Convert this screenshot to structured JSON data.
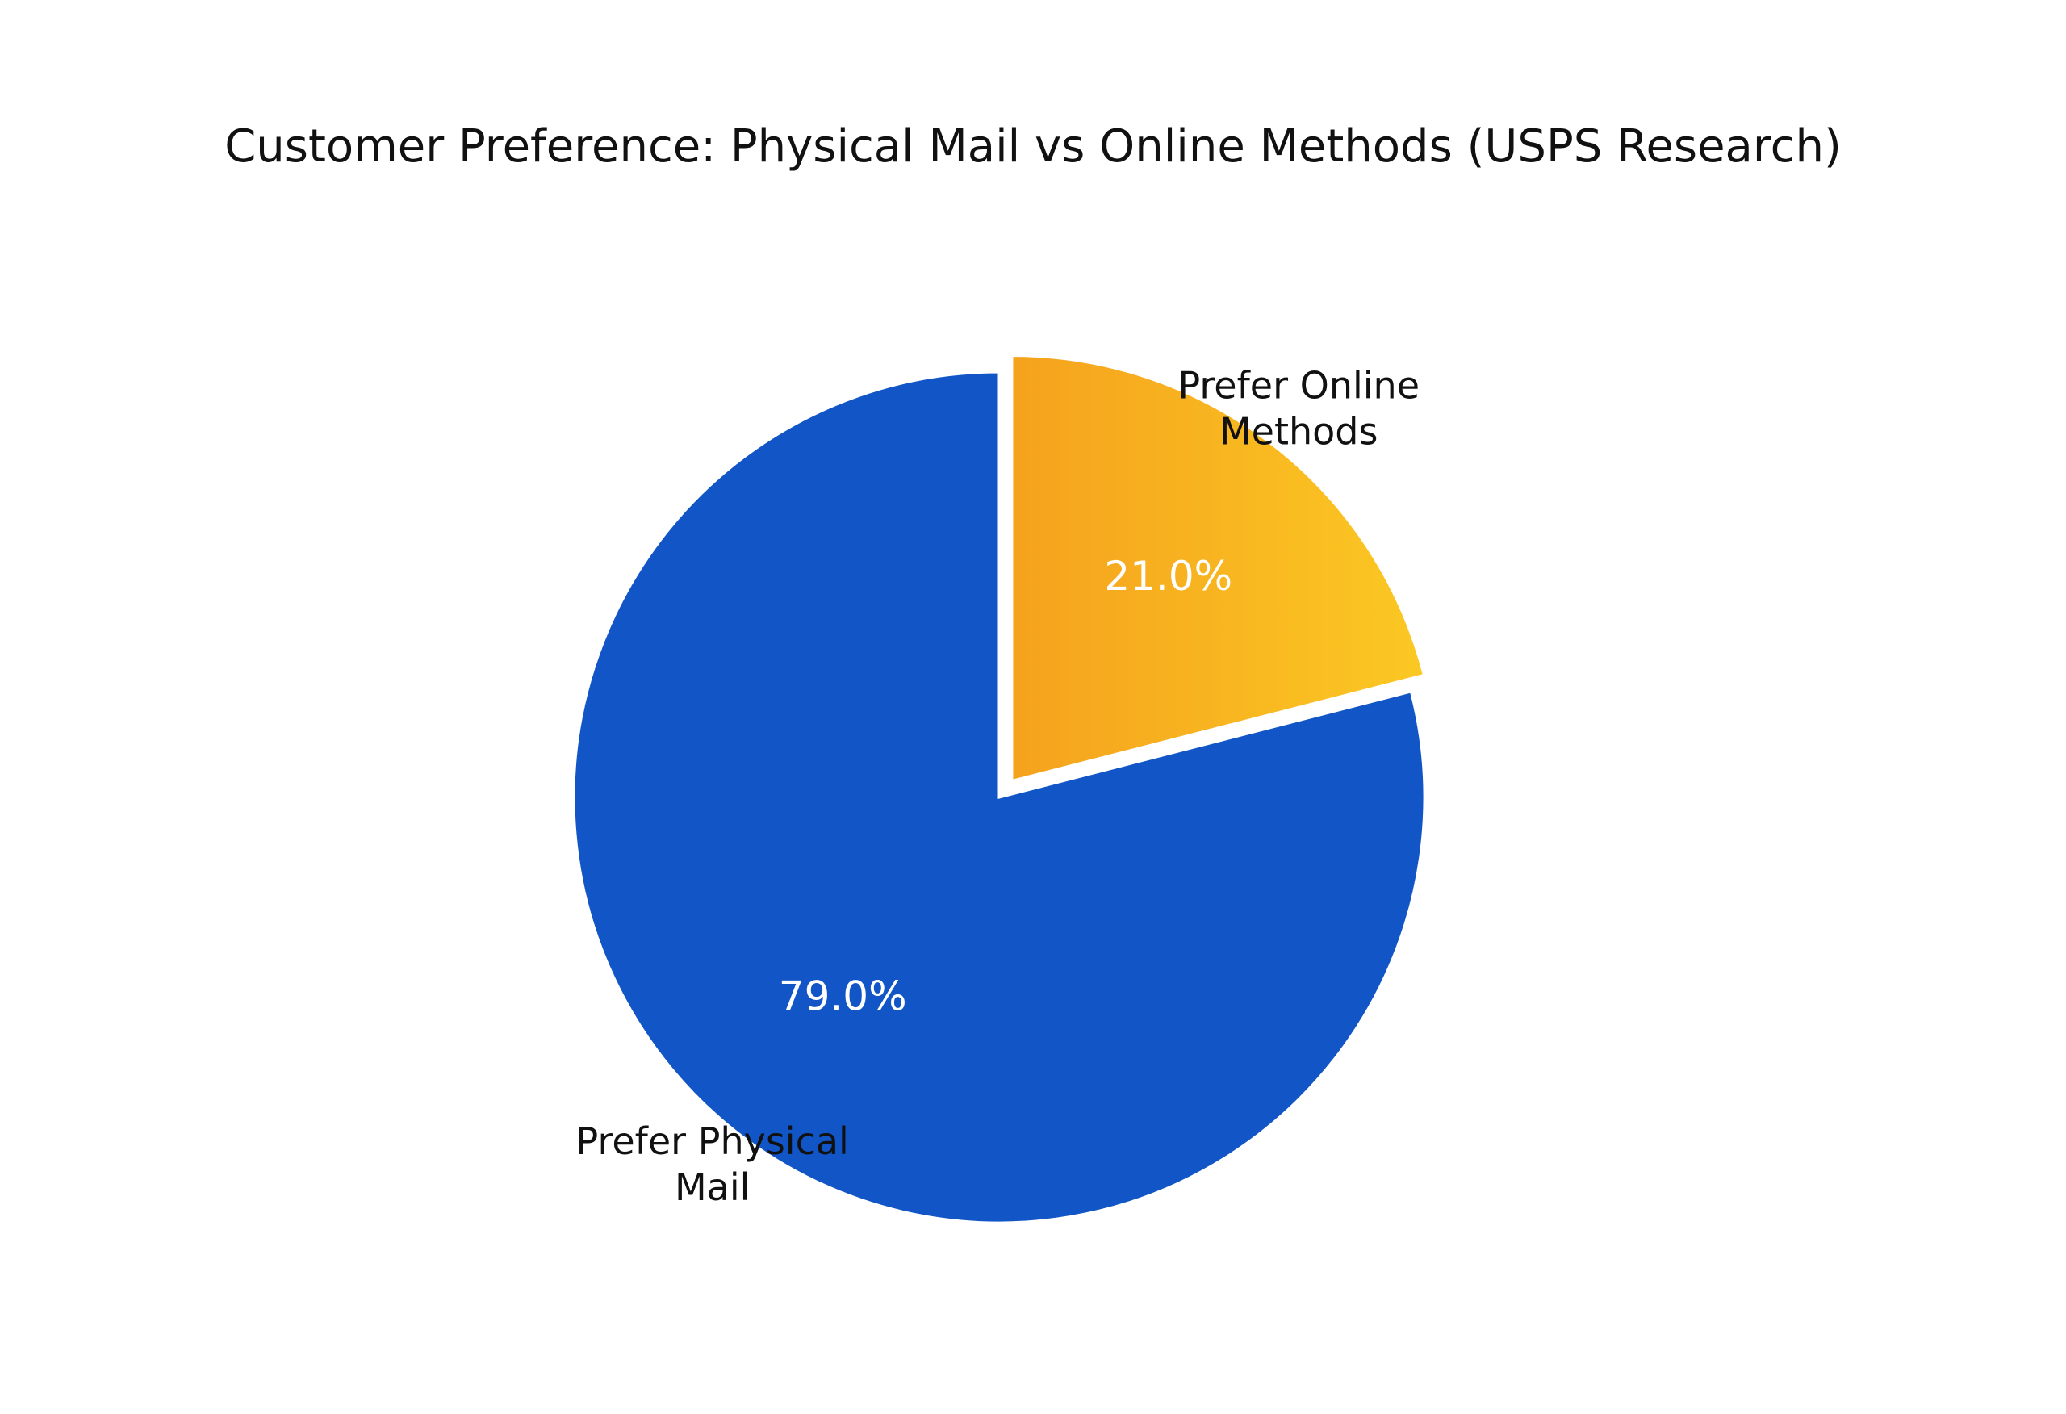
{
  "chart_data": {
    "type": "pie",
    "title": "Customer Preference: Physical Mail vs Online Methods (USPS Research)",
    "slices": [
      {
        "label_lines": [
          "Prefer Online",
          "Methods"
        ],
        "value": 21.0,
        "value_label": "21.0%",
        "color": "#F9B41C",
        "gradient": [
          "#F5A21D",
          "#FBC823"
        ],
        "exploded": true
      },
      {
        "label_lines": [
          "Prefer Physical",
          "Mail"
        ],
        "value": 79.0,
        "value_label": "79.0%",
        "color": "#1155C6",
        "exploded": false
      }
    ],
    "start": "12 o'clock",
    "direction": "clockwise",
    "legend": "none",
    "edge_color": "#ffffff"
  }
}
